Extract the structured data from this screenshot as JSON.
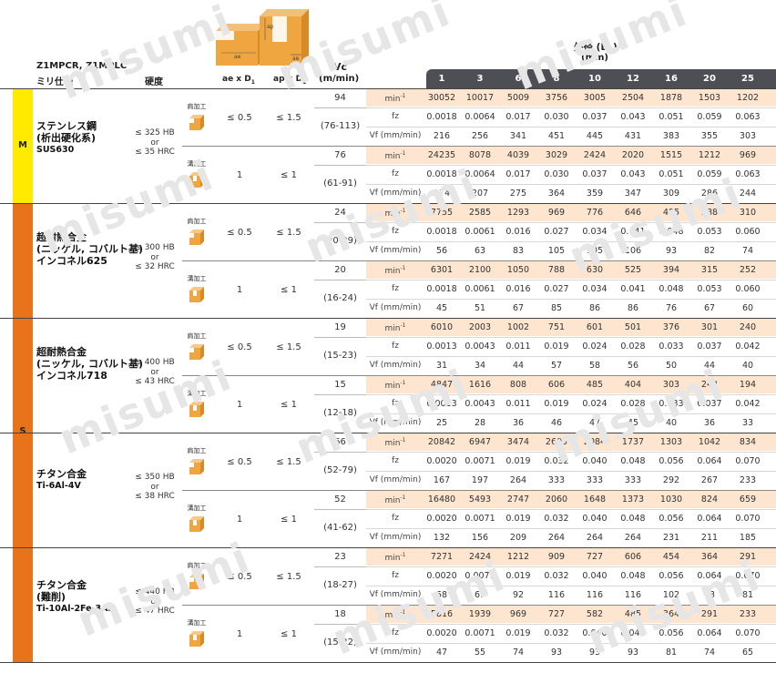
{
  "header": {
    "series": "Z1MPCR, Z1MPLC",
    "spec": "ミリ仕様",
    "hardness": "硬度",
    "ae_label": "ae x D",
    "ap_label": "ap x D",
    "sub1": "1",
    "vc_label": "Vc",
    "vc_unit": "(m/min)",
    "diameter_label": "外径 (D",
    "diameter_close": ")",
    "diameter_unit": "(mm)",
    "diagram_ae": "ae",
    "diagram_ap": "ap"
  },
  "diameters": [
    "1",
    "3",
    "6",
    "8",
    "10",
    "12",
    "16",
    "20",
    "25"
  ],
  "bands": [
    {
      "label": "M",
      "color": "#ffea00"
    },
    {
      "label": "S",
      "color": "#e8731a"
    }
  ],
  "ops": {
    "shoulder": "肩加工",
    "slot": "溝加工"
  },
  "units": {
    "rpm": "min",
    "rpm_sup": "-1",
    "fz": "fz",
    "vf": "Vf (mm/min)"
  },
  "watermark": "misumi",
  "groups": [
    {
      "material": [
        "ステンレス鋼",
        "(析出硬化系)"
      ],
      "code": "SUS630",
      "hardness": [
        "≤ 325 HB",
        "or",
        "≤ 35 HRC"
      ],
      "blocks": [
        {
          "op": "shoulder",
          "ae": "≤ 0.5",
          "ap": "≤ 1.5",
          "vc": "94",
          "vc_range": "(76-113)",
          "rpm": [
            "30052",
            "10017",
            "5009",
            "3756",
            "3005",
            "2504",
            "1878",
            "1503",
            "1202"
          ],
          "fz": [
            "0.0018",
            "0.0064",
            "0.017",
            "0.030",
            "0.037",
            "0.043",
            "0.051",
            "0.059",
            "0.063"
          ],
          "vf": [
            "216",
            "256",
            "341",
            "451",
            "445",
            "431",
            "383",
            "355",
            "303"
          ]
        },
        {
          "op": "slot",
          "ae": "1",
          "ap": "≤ 1",
          "vc": "76",
          "vc_range": "(61-91)",
          "rpm": [
            "24235",
            "8078",
            "4039",
            "3029",
            "2424",
            "2020",
            "1515",
            "1212",
            "969"
          ],
          "fz": [
            "0.0018",
            "0.0064",
            "0.017",
            "0.030",
            "0.037",
            "0.043",
            "0.051",
            "0.059",
            "0.063"
          ],
          "vf": [
            "174",
            "207",
            "275",
            "364",
            "359",
            "347",
            "309",
            "286",
            "244"
          ]
        }
      ]
    },
    {
      "material": [
        "超耐熱合金",
        "(ニッケル, コバルト基)",
        "インコネル625"
      ],
      "code": "",
      "hardness": [
        "≤ 300 HB",
        "or",
        "≤ 32 HRC"
      ],
      "blocks": [
        {
          "op": "shoulder",
          "ae": "≤ 0.5",
          "ap": "≤ 1.5",
          "vc": "24",
          "vc_range": "(20-29)",
          "rpm": [
            "7755",
            "2585",
            "1293",
            "969",
            "776",
            "646",
            "485",
            "388",
            "310"
          ],
          "fz": [
            "0.0018",
            "0.0061",
            "0.016",
            "0.027",
            "0.034",
            "0.041",
            "0.048",
            "0.053",
            "0.060"
          ],
          "vf": [
            "56",
            "63",
            "83",
            "105",
            "105",
            "106",
            "93",
            "82",
            "74"
          ]
        },
        {
          "op": "slot",
          "ae": "1",
          "ap": "≤ 1",
          "vc": "20",
          "vc_range": "(16-24)",
          "rpm": [
            "6301",
            "2100",
            "1050",
            "788",
            "630",
            "525",
            "394",
            "315",
            "252"
          ],
          "fz": [
            "0.0018",
            "0.0061",
            "0.016",
            "0.027",
            "0.034",
            "0.041",
            "0.048",
            "0.053",
            "0.060"
          ],
          "vf": [
            "45",
            "51",
            "67",
            "85",
            "86",
            "86",
            "76",
            "67",
            "60"
          ]
        }
      ]
    },
    {
      "material": [
        "超耐熱合金",
        "(ニッケル, コバルト基)",
        "インコネル718"
      ],
      "code": "",
      "hardness": [
        "≤ 400 HB",
        "or",
        "≤ 43 HRC"
      ],
      "blocks": [
        {
          "op": "shoulder",
          "ae": "≤ 0.5",
          "ap": "≤ 1.5",
          "vc": "19",
          "vc_range": "(15-23)",
          "rpm": [
            "6010",
            "2003",
            "1002",
            "751",
            "601",
            "501",
            "376",
            "301",
            "240"
          ],
          "fz": [
            "0.0013",
            "0.0043",
            "0.011",
            "0.019",
            "0.024",
            "0.028",
            "0.033",
            "0.037",
            "0.042"
          ],
          "vf": [
            "31",
            "34",
            "44",
            "57",
            "58",
            "56",
            "50",
            "44",
            "40"
          ]
        },
        {
          "op": "slot",
          "ae": "1",
          "ap": "≤ 1",
          "vc": "15",
          "vc_range": "(12-18)",
          "rpm": [
            "4847",
            "1616",
            "808",
            "606",
            "485",
            "404",
            "303",
            "242",
            "194"
          ],
          "fz": [
            "0.0013",
            "0.0043",
            "0.011",
            "0.019",
            "0.024",
            "0.028",
            "0.033",
            "0.037",
            "0.042"
          ],
          "vf": [
            "25",
            "28",
            "36",
            "46",
            "47",
            "45",
            "40",
            "36",
            "33"
          ]
        }
      ]
    },
    {
      "material": [
        "チタン合金"
      ],
      "code": "Ti-6Al-4V",
      "hardness": [
        "≤ 350 HB",
        "or",
        "≤ 38 HRC"
      ],
      "blocks": [
        {
          "op": "shoulder",
          "ae": "≤ 0.5",
          "ap": "≤ 1.5",
          "vc": "66",
          "vc_range": "(52-79)",
          "rpm": [
            "20842",
            "6947",
            "3474",
            "2605",
            "2084",
            "1737",
            "1303",
            "1042",
            "834"
          ],
          "fz": [
            "0.0020",
            "0.0071",
            "0.019",
            "0.032",
            "0.040",
            "0.048",
            "0.056",
            "0.064",
            "0.070"
          ],
          "vf": [
            "167",
            "197",
            "264",
            "333",
            "333",
            "333",
            "292",
            "267",
            "233"
          ]
        },
        {
          "op": "slot",
          "ae": "1",
          "ap": "≤ 1",
          "vc": "52",
          "vc_range": "(41-62)",
          "rpm": [
            "16480",
            "5493",
            "2747",
            "2060",
            "1648",
            "1373",
            "1030",
            "824",
            "659"
          ],
          "fz": [
            "0.0020",
            "0.0071",
            "0.019",
            "0.032",
            "0.040",
            "0.048",
            "0.056",
            "0.064",
            "0.070"
          ],
          "vf": [
            "132",
            "156",
            "209",
            "264",
            "264",
            "264",
            "231",
            "211",
            "185"
          ]
        }
      ]
    },
    {
      "material": [
        "チタン合金",
        "(難削)"
      ],
      "code": "Ti-10Al-2Fe-3Al",
      "hardness": [
        "≤ 440 HB",
        "or",
        "≤ 47 HRC"
      ],
      "blocks": [
        {
          "op": "shoulder",
          "ae": "≤ 0.5",
          "ap": "≤ 1.5",
          "vc": "23",
          "vc_range": "(18-27)",
          "rpm": [
            "7271",
            "2424",
            "1212",
            "909",
            "727",
            "606",
            "454",
            "364",
            "291"
          ],
          "fz": [
            "0.0020",
            "0.0071",
            "0.019",
            "0.032",
            "0.040",
            "0.048",
            "0.056",
            "0.064",
            "0.070"
          ],
          "vf": [
            "58",
            "69",
            "92",
            "116",
            "116",
            "116",
            "102",
            "93",
            "81"
          ]
        },
        {
          "op": "slot",
          "ae": "1",
          "ap": "≤ 1",
          "vc": "18",
          "vc_range": "(15-22)",
          "rpm": [
            "5816",
            "1939",
            "969",
            "727",
            "582",
            "485",
            "364",
            "291",
            "233"
          ],
          "fz": [
            "0.0020",
            "0.0071",
            "0.019",
            "0.032",
            "0.040",
            "0.048",
            "0.056",
            "0.064",
            "0.070"
          ],
          "vf": [
            "47",
            "55",
            "74",
            "93",
            "93",
            "93",
            "81",
            "74",
            "65"
          ]
        }
      ]
    }
  ]
}
